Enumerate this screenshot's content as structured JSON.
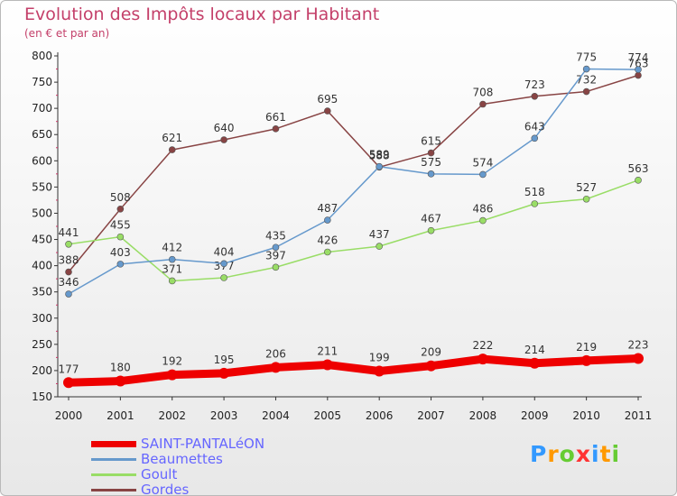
{
  "chart_data": {
    "type": "line",
    "title": "Evolution des Impôts locaux par Habitant",
    "subtitle": "(en € et par an)",
    "xlabel": "",
    "ylabel": "",
    "categories": [
      "2000",
      "2001",
      "2002",
      "2003",
      "2004",
      "2005",
      "2006",
      "2007",
      "2008",
      "2009",
      "2010",
      "2011"
    ],
    "ylim": [
      150,
      800
    ],
    "yticks": [
      150,
      200,
      250,
      300,
      350,
      400,
      450,
      500,
      550,
      600,
      650,
      700,
      750,
      800
    ],
    "grid": false,
    "legend_position": "bottom-left",
    "series": [
      {
        "name": "SAINT-PANTALéON",
        "color": "#ee0000",
        "values": [
          177,
          180,
          192,
          195,
          206,
          211,
          199,
          209,
          222,
          214,
          219,
          223
        ]
      },
      {
        "name": "Beaumettes",
        "color": "#6699cc",
        "values": [
          346,
          403,
          412,
          404,
          435,
          487,
          589,
          575,
          574,
          643,
          775,
          774
        ]
      },
      {
        "name": "Goult",
        "color": "#99dd66",
        "values": [
          441,
          455,
          371,
          377,
          397,
          426,
          437,
          467,
          486,
          518,
          527,
          563
        ]
      },
      {
        "name": "Gordes",
        "color": "#884444",
        "values": [
          388,
          508,
          621,
          640,
          661,
          695,
          588,
          615,
          708,
          723,
          732,
          763
        ]
      }
    ]
  },
  "legend": {
    "items": [
      {
        "label": "SAINT-PANTALéON",
        "color": "#ee0000"
      },
      {
        "label": "Beaumettes",
        "color": "#6699cc"
      },
      {
        "label": "Goult",
        "color": "#99dd66"
      },
      {
        "label": "Gordes",
        "color": "#884444"
      }
    ]
  },
  "logo": {
    "letters": [
      "P",
      "r",
      "o",
      "x",
      "i",
      "t",
      "i"
    ],
    "colors": [
      "#3399ff",
      "#ff9900",
      "#66cc33",
      "#ff3333",
      "#3399ff",
      "#ff9900",
      "#66cc33"
    ]
  }
}
